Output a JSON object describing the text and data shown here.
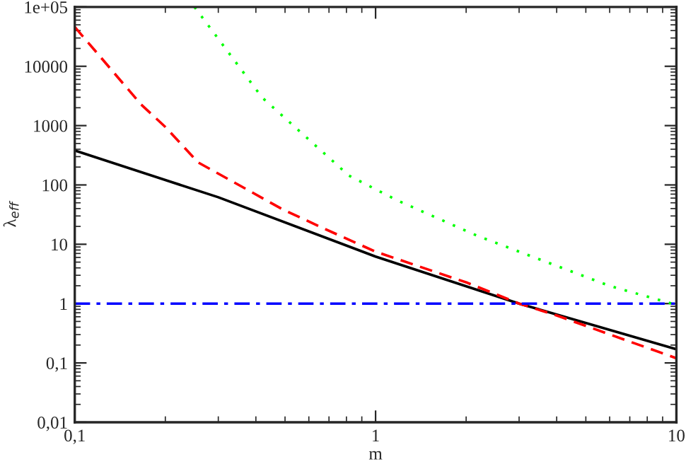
{
  "chart_data": {
    "type": "line",
    "xlabel": "m",
    "ylabel": "λ$_{eff}$",
    "log": "xy",
    "grid": false,
    "legend": false,
    "marker": "none",
    "xlim": [
      0.1,
      10
    ],
    "xticks": [
      {
        "value": 0.1,
        "label": "0,1"
      },
      1,
      10
    ],
    "ylim": [
      0.01,
      100000
    ],
    "yticks": [
      {
        "value": 0.01,
        "label": "0,01"
      },
      {
        "value": 0.1,
        "label": "0,1"
      },
      1,
      10,
      100,
      1000,
      10000,
      {
        "value": 100000,
        "label": "1e+05"
      }
    ],
    "series": [
      {
        "color": "#000000",
        "line_style": "solid",
        "x": [
          0.1,
          0.3,
          1,
          3,
          10
        ],
        "values": [
          380,
          62,
          6.2,
          1.0,
          0.17
        ]
      },
      {
        "color": "#ff0000",
        "line_style": "dashed",
        "x": [
          0.1,
          0.166,
          0.2,
          0.257,
          0.49,
          0.68,
          1,
          2.02,
          3,
          4,
          10
        ],
        "values": [
          46000,
          2280,
          950,
          240,
          39,
          18,
          7.5,
          2.24,
          1.0,
          0.63,
          0.12
        ]
      },
      {
        "color": "#00ff00",
        "line_style": "dotted",
        "x": [
          0.25,
          0.42,
          0.815,
          1.18,
          2.17,
          5.98,
          10
        ],
        "values": [
          100000,
          2960,
          144,
          55,
          14,
          2.0,
          0.95
        ]
      },
      {
        "color": "#0000ff",
        "line_style": "dashdot",
        "x": [
          0.1,
          10
        ],
        "values": [
          1,
          1
        ]
      }
    ]
  }
}
